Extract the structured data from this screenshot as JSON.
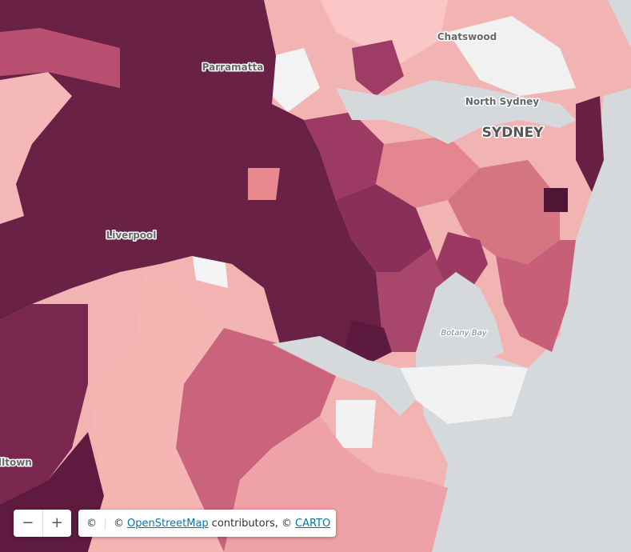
{
  "place_labels": [
    "Chatswood",
    "Parramatta",
    "North Sydney",
    "SYDNEY",
    "Liverpool",
    "lltown"
  ],
  "water_labels": [
    "Botany Bay"
  ],
  "zoom_controls": {
    "zoom_out": "−",
    "zoom_in": "+"
  },
  "attribution": {
    "icon": "©",
    "prefix": "©",
    "osm": "OpenStreetMap",
    "middle": "contributors, ©",
    "carto": "CARTO"
  }
}
